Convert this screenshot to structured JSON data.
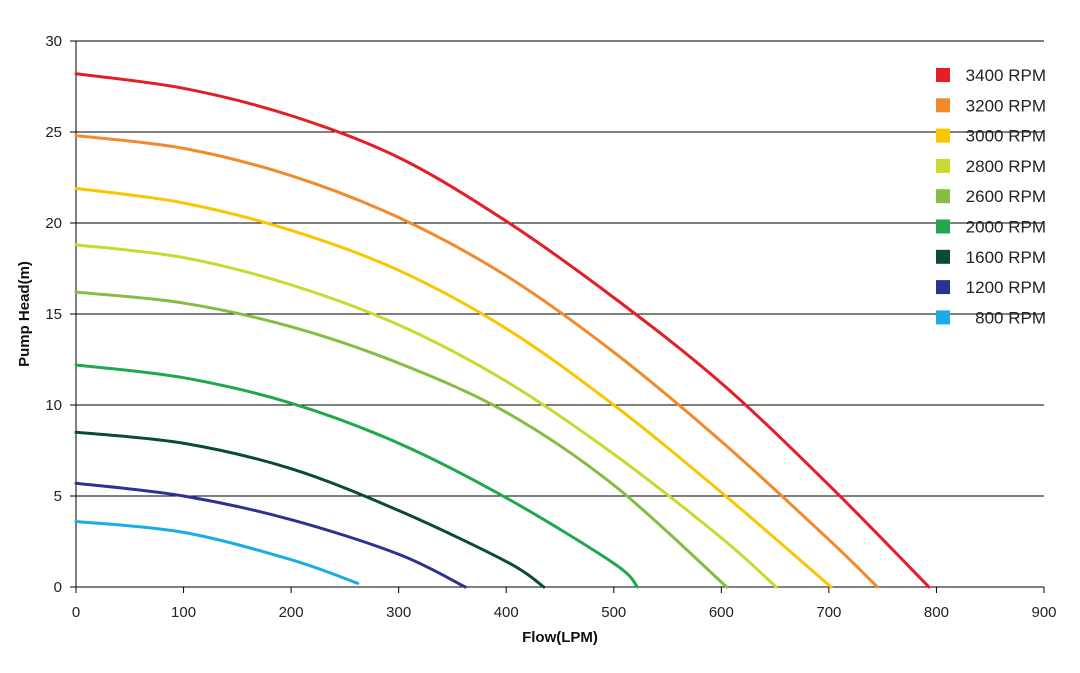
{
  "chart_data": {
    "type": "line",
    "title": "",
    "xlabel": "Flow(LPM)",
    "ylabel": "Pump Head(m)",
    "xlim": [
      0,
      900
    ],
    "ylim": [
      0,
      30
    ],
    "x_ticks": [
      "0",
      "100",
      "200",
      "300",
      "400",
      "500",
      "600",
      "700",
      "800",
      "900"
    ],
    "y_ticks": [
      "0",
      "5",
      "10",
      "15",
      "20",
      "25",
      "30"
    ],
    "grid": "horizontal",
    "legend_position": "top-right",
    "series": [
      {
        "name": "3400 RPM",
        "color": "#e41e26",
        "x": [
          0,
          100,
          200,
          300,
          400,
          500,
          600,
          700,
          793
        ],
        "y": [
          28.2,
          27.4,
          25.9,
          23.6,
          20.1,
          15.9,
          11.2,
          5.6,
          0
        ]
      },
      {
        "name": "3200 RPM",
        "color": "#f28a2b",
        "x": [
          0,
          100,
          200,
          300,
          400,
          500,
          600,
          700,
          745
        ],
        "y": [
          24.8,
          24.1,
          22.6,
          20.3,
          17.1,
          12.9,
          8.0,
          2.6,
          0
        ]
      },
      {
        "name": "3000 RPM",
        "color": "#f9c600",
        "x": [
          0,
          100,
          200,
          300,
          400,
          500,
          600,
          702
        ],
        "y": [
          21.9,
          21.1,
          19.6,
          17.4,
          14.2,
          10.0,
          5.2,
          0
        ]
      },
      {
        "name": "2800 RPM",
        "color": "#c9d92f",
        "x": [
          0,
          100,
          200,
          300,
          400,
          500,
          600,
          651
        ],
        "y": [
          18.8,
          18.1,
          16.6,
          14.4,
          11.3,
          7.3,
          2.7,
          0
        ]
      },
      {
        "name": "2600 RPM",
        "color": "#84bd41",
        "x": [
          0,
          100,
          200,
          300,
          400,
          500,
          605
        ],
        "y": [
          16.2,
          15.6,
          14.3,
          12.3,
          9.6,
          5.6,
          0
        ]
      },
      {
        "name": "2000 RPM",
        "color": "#20a84e",
        "x": [
          0,
          100,
          200,
          300,
          400,
          500,
          522
        ],
        "y": [
          12.2,
          11.5,
          10.1,
          7.9,
          4.9,
          1.3,
          0
        ]
      },
      {
        "name": "1600 RPM",
        "color": "#0a4b32",
        "x": [
          0,
          100,
          200,
          300,
          400,
          435
        ],
        "y": [
          8.5,
          7.9,
          6.5,
          4.2,
          1.4,
          0
        ]
      },
      {
        "name": "1200 RPM",
        "color": "#2e3192",
        "x": [
          0,
          100,
          200,
          300,
          362
        ],
        "y": [
          5.7,
          5.0,
          3.7,
          1.8,
          0
        ]
      },
      {
        "name": "800 RPM",
        "color": "#1aace4",
        "x": [
          0,
          100,
          200,
          262
        ],
        "y": [
          3.6,
          3.0,
          1.5,
          0.2
        ]
      }
    ]
  }
}
